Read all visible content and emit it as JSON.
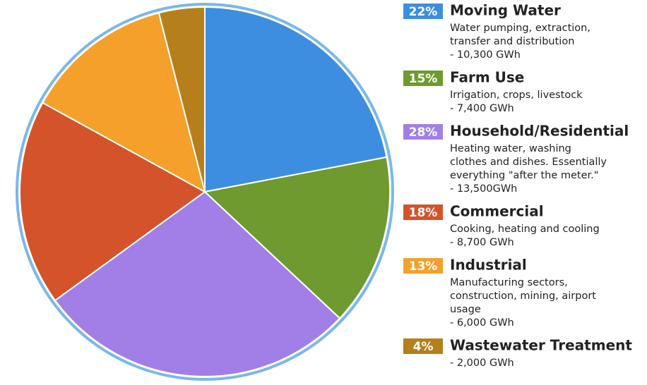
{
  "chart_data": {
    "type": "pie",
    "categories": [
      "Moving Water",
      "Farm Use",
      "Household/Residential",
      "Commercial",
      "Industrial",
      "Wastewater Treatment"
    ],
    "values": [
      22,
      15,
      28,
      18,
      13,
      4
    ],
    "value_labels": [
      "22%",
      "15%",
      "28%",
      "18%",
      "13%",
      "4%"
    ],
    "colors": [
      "#3d8ee0",
      "#6f9a2f",
      "#a27fe6",
      "#d4532b",
      "#f5a02b",
      "#b5801b"
    ],
    "descriptions": [
      [
        "Water pumping, extraction,",
        "transfer and distribution",
        "- 10,300 GWh"
      ],
      [
        "Irrigation, crops, livestock",
        "- 7,400 GWh"
      ],
      [
        "Heating water, washing",
        "clothes and dishes. Essentially",
        "everything \"after the meter.\"",
        "- 13,500GWh"
      ],
      [
        "Cooking, heating and cooling",
        "- 8,700 GWh"
      ],
      [
        "Manufacturing sectors,",
        "construction, mining, airport",
        "usage",
        "- 6,000 GWh"
      ],
      [
        "- 2,000 GWh"
      ]
    ]
  }
}
